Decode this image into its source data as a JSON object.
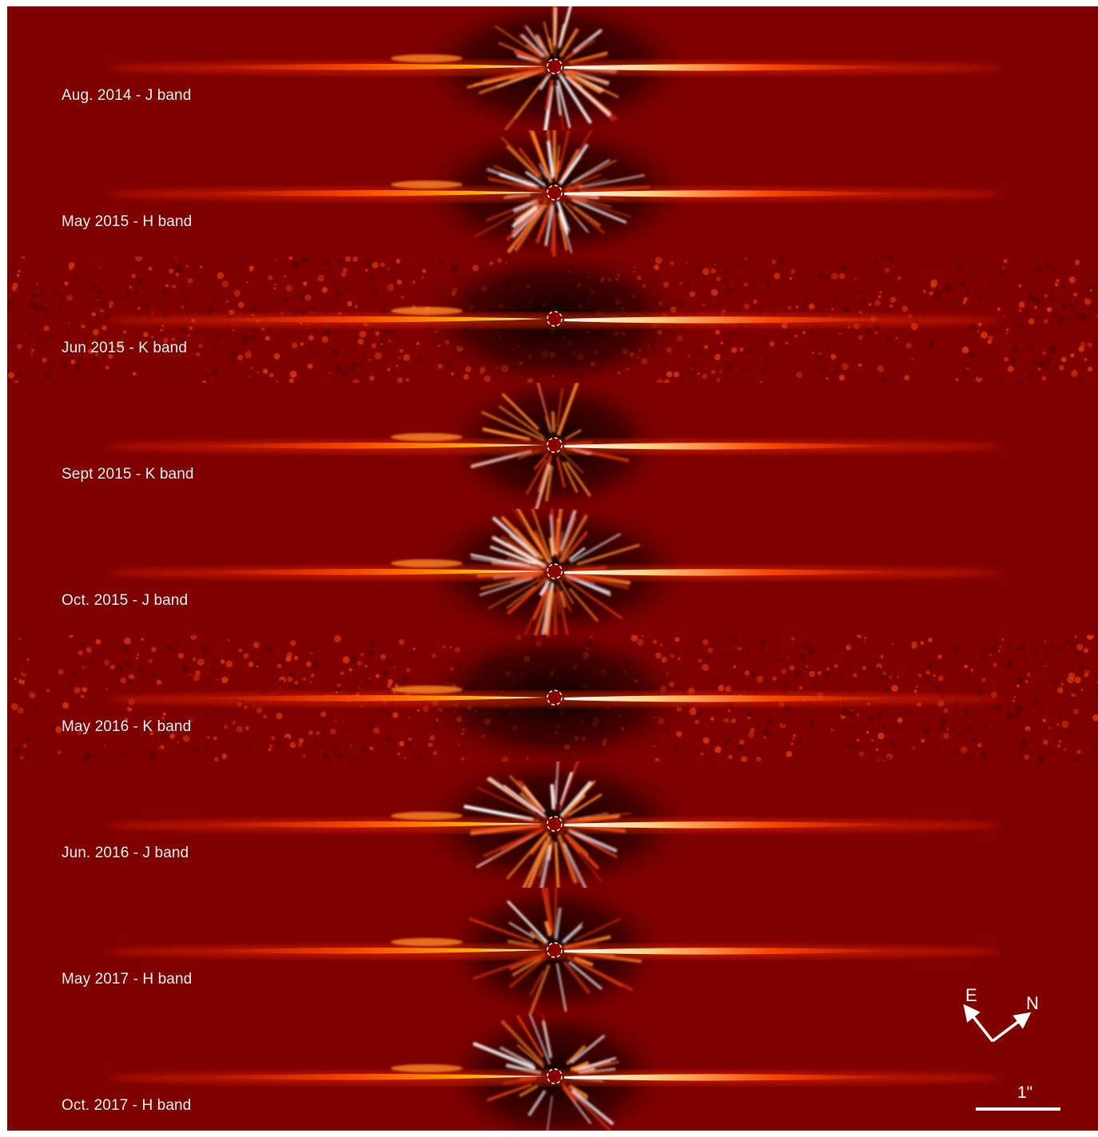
{
  "figure": {
    "panels": [
      {
        "label": "Aug. 2014 - J band",
        "style": "spiky"
      },
      {
        "label": "May 2015 - H band",
        "style": "spiky"
      },
      {
        "label": "Jun 2015 - K band",
        "style": "noisy"
      },
      {
        "label": "Sept 2015 - K band",
        "style": "smooth"
      },
      {
        "label": "Oct. 2015 - J band",
        "style": "spiky"
      },
      {
        "label": "May 2016 - K band",
        "style": "noisy"
      },
      {
        "label": "Jun. 2016 - J band",
        "style": "spiky"
      },
      {
        "label": "May 2017 - H band",
        "style": "smooth"
      },
      {
        "label": "Oct. 2017 - H band",
        "style": "smooth"
      }
    ],
    "compass": {
      "east": "E",
      "north": "N"
    },
    "scale_bar": {
      "label": "1\""
    },
    "colors": {
      "background": "#800000",
      "disk": "#ff6a00",
      "disk_core": "#ffffff",
      "dark": "#1a0000"
    }
  }
}
